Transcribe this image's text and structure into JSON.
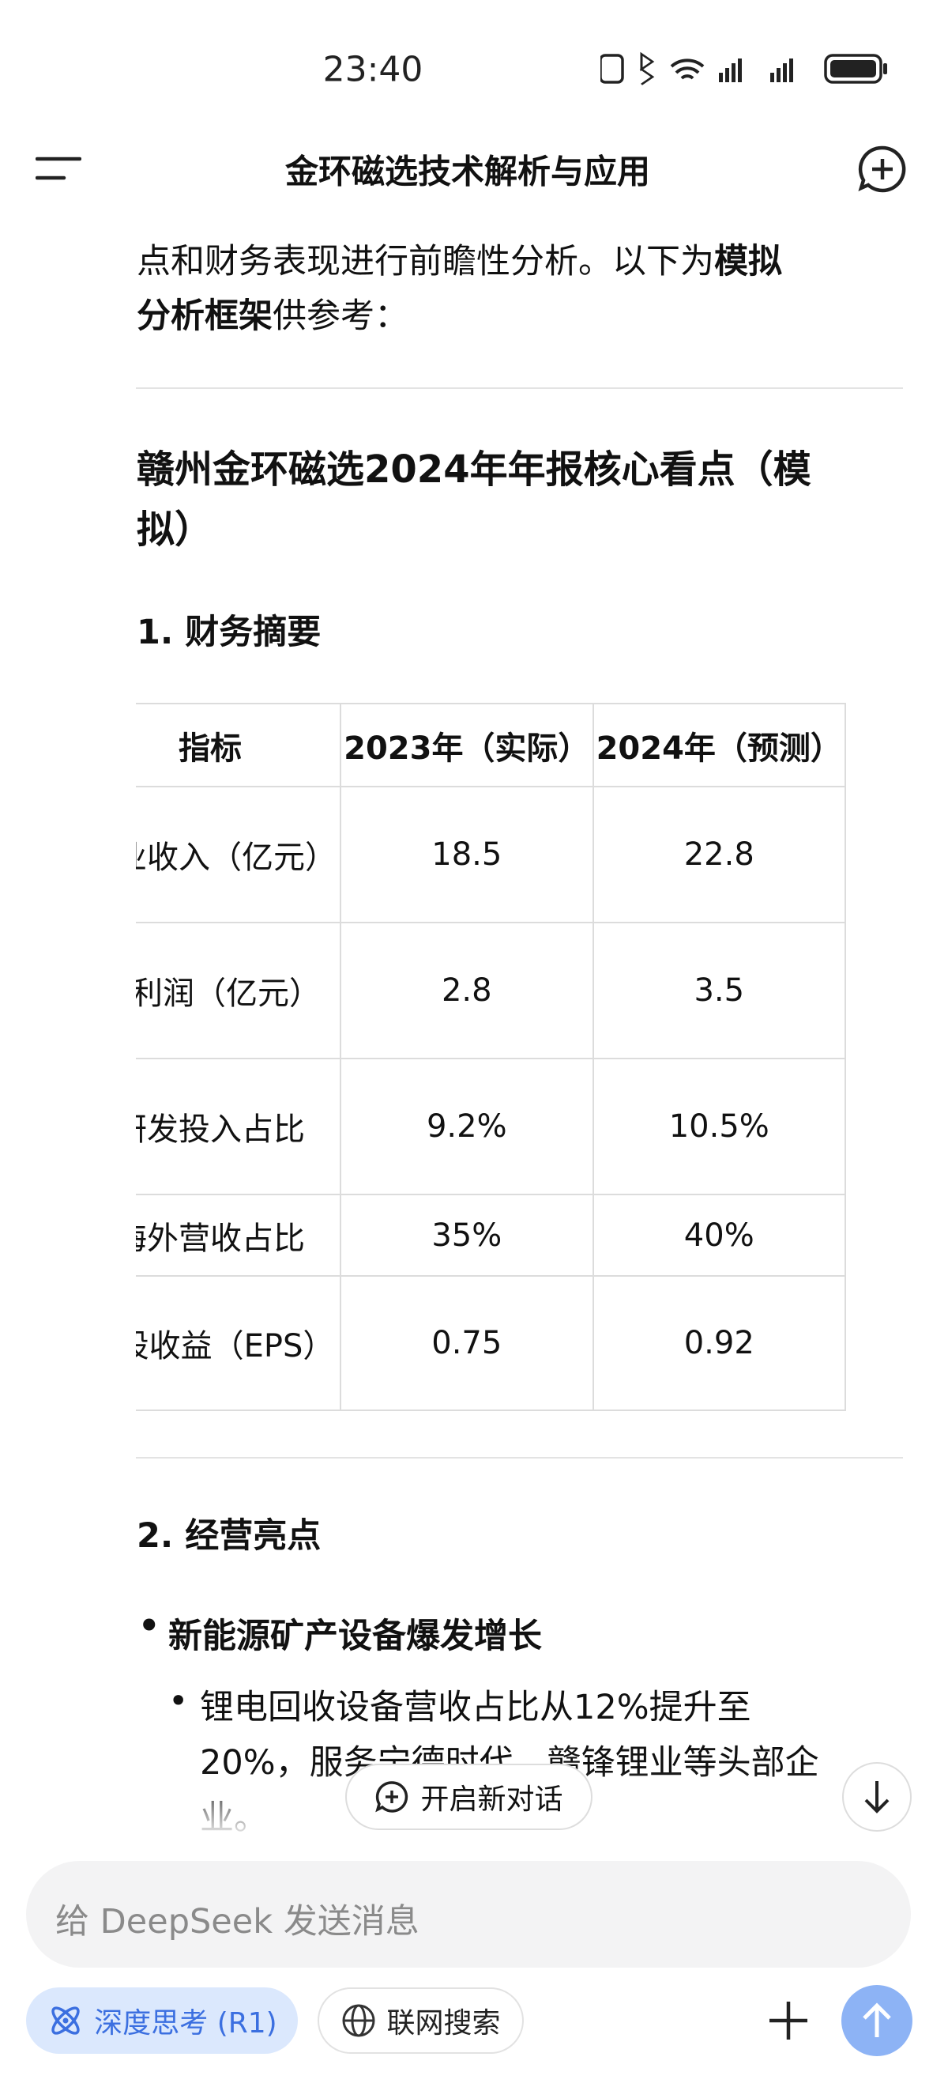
{
  "status": {
    "time": "23:40"
  },
  "header": {
    "title": "金环磁选技术解析与应用"
  },
  "intro": {
    "line1": "点和财务表现进行前瞻性分析。以下为",
    "bold1": "模拟",
    "bold2": "分析框架",
    "tail": "供参考："
  },
  "heading": {
    "line1": "赣州金环磁选2024年年报核心看点（模",
    "line2": "拟）"
  },
  "section1": "1. 财务摘要",
  "table": {
    "header": [
      "指标",
      "2023年（实际）",
      "2024年（预测）"
    ],
    "rows": [
      [
        "营业收入（亿元）",
        "18.5",
        "22.8"
      ],
      [
        "净利润（亿元）",
        "2.8",
        "3.5"
      ],
      [
        "研发投入占比",
        "9.2%",
        "10.5%"
      ],
      [
        "海外营收占比",
        "35%",
        "40%"
      ],
      [
        "每股收益（EPS）",
        "0.75",
        "0.92"
      ]
    ]
  },
  "section2": "2. 经营亮点",
  "bullet1": "新能源矿产设备爆发增长",
  "sub1": {
    "line1": "锂电回收设备营收占比从12%提升至",
    "line2": "20%，服务宁德时代、赣锋锂业等头部企",
    "line3": "业。"
  },
  "new_chat": "开启新对话",
  "input": {
    "placeholder": "给 DeepSeek 发送消息"
  },
  "buttons": {
    "deep_think": "深度思考 (R1)",
    "web_search": "联网搜索"
  }
}
